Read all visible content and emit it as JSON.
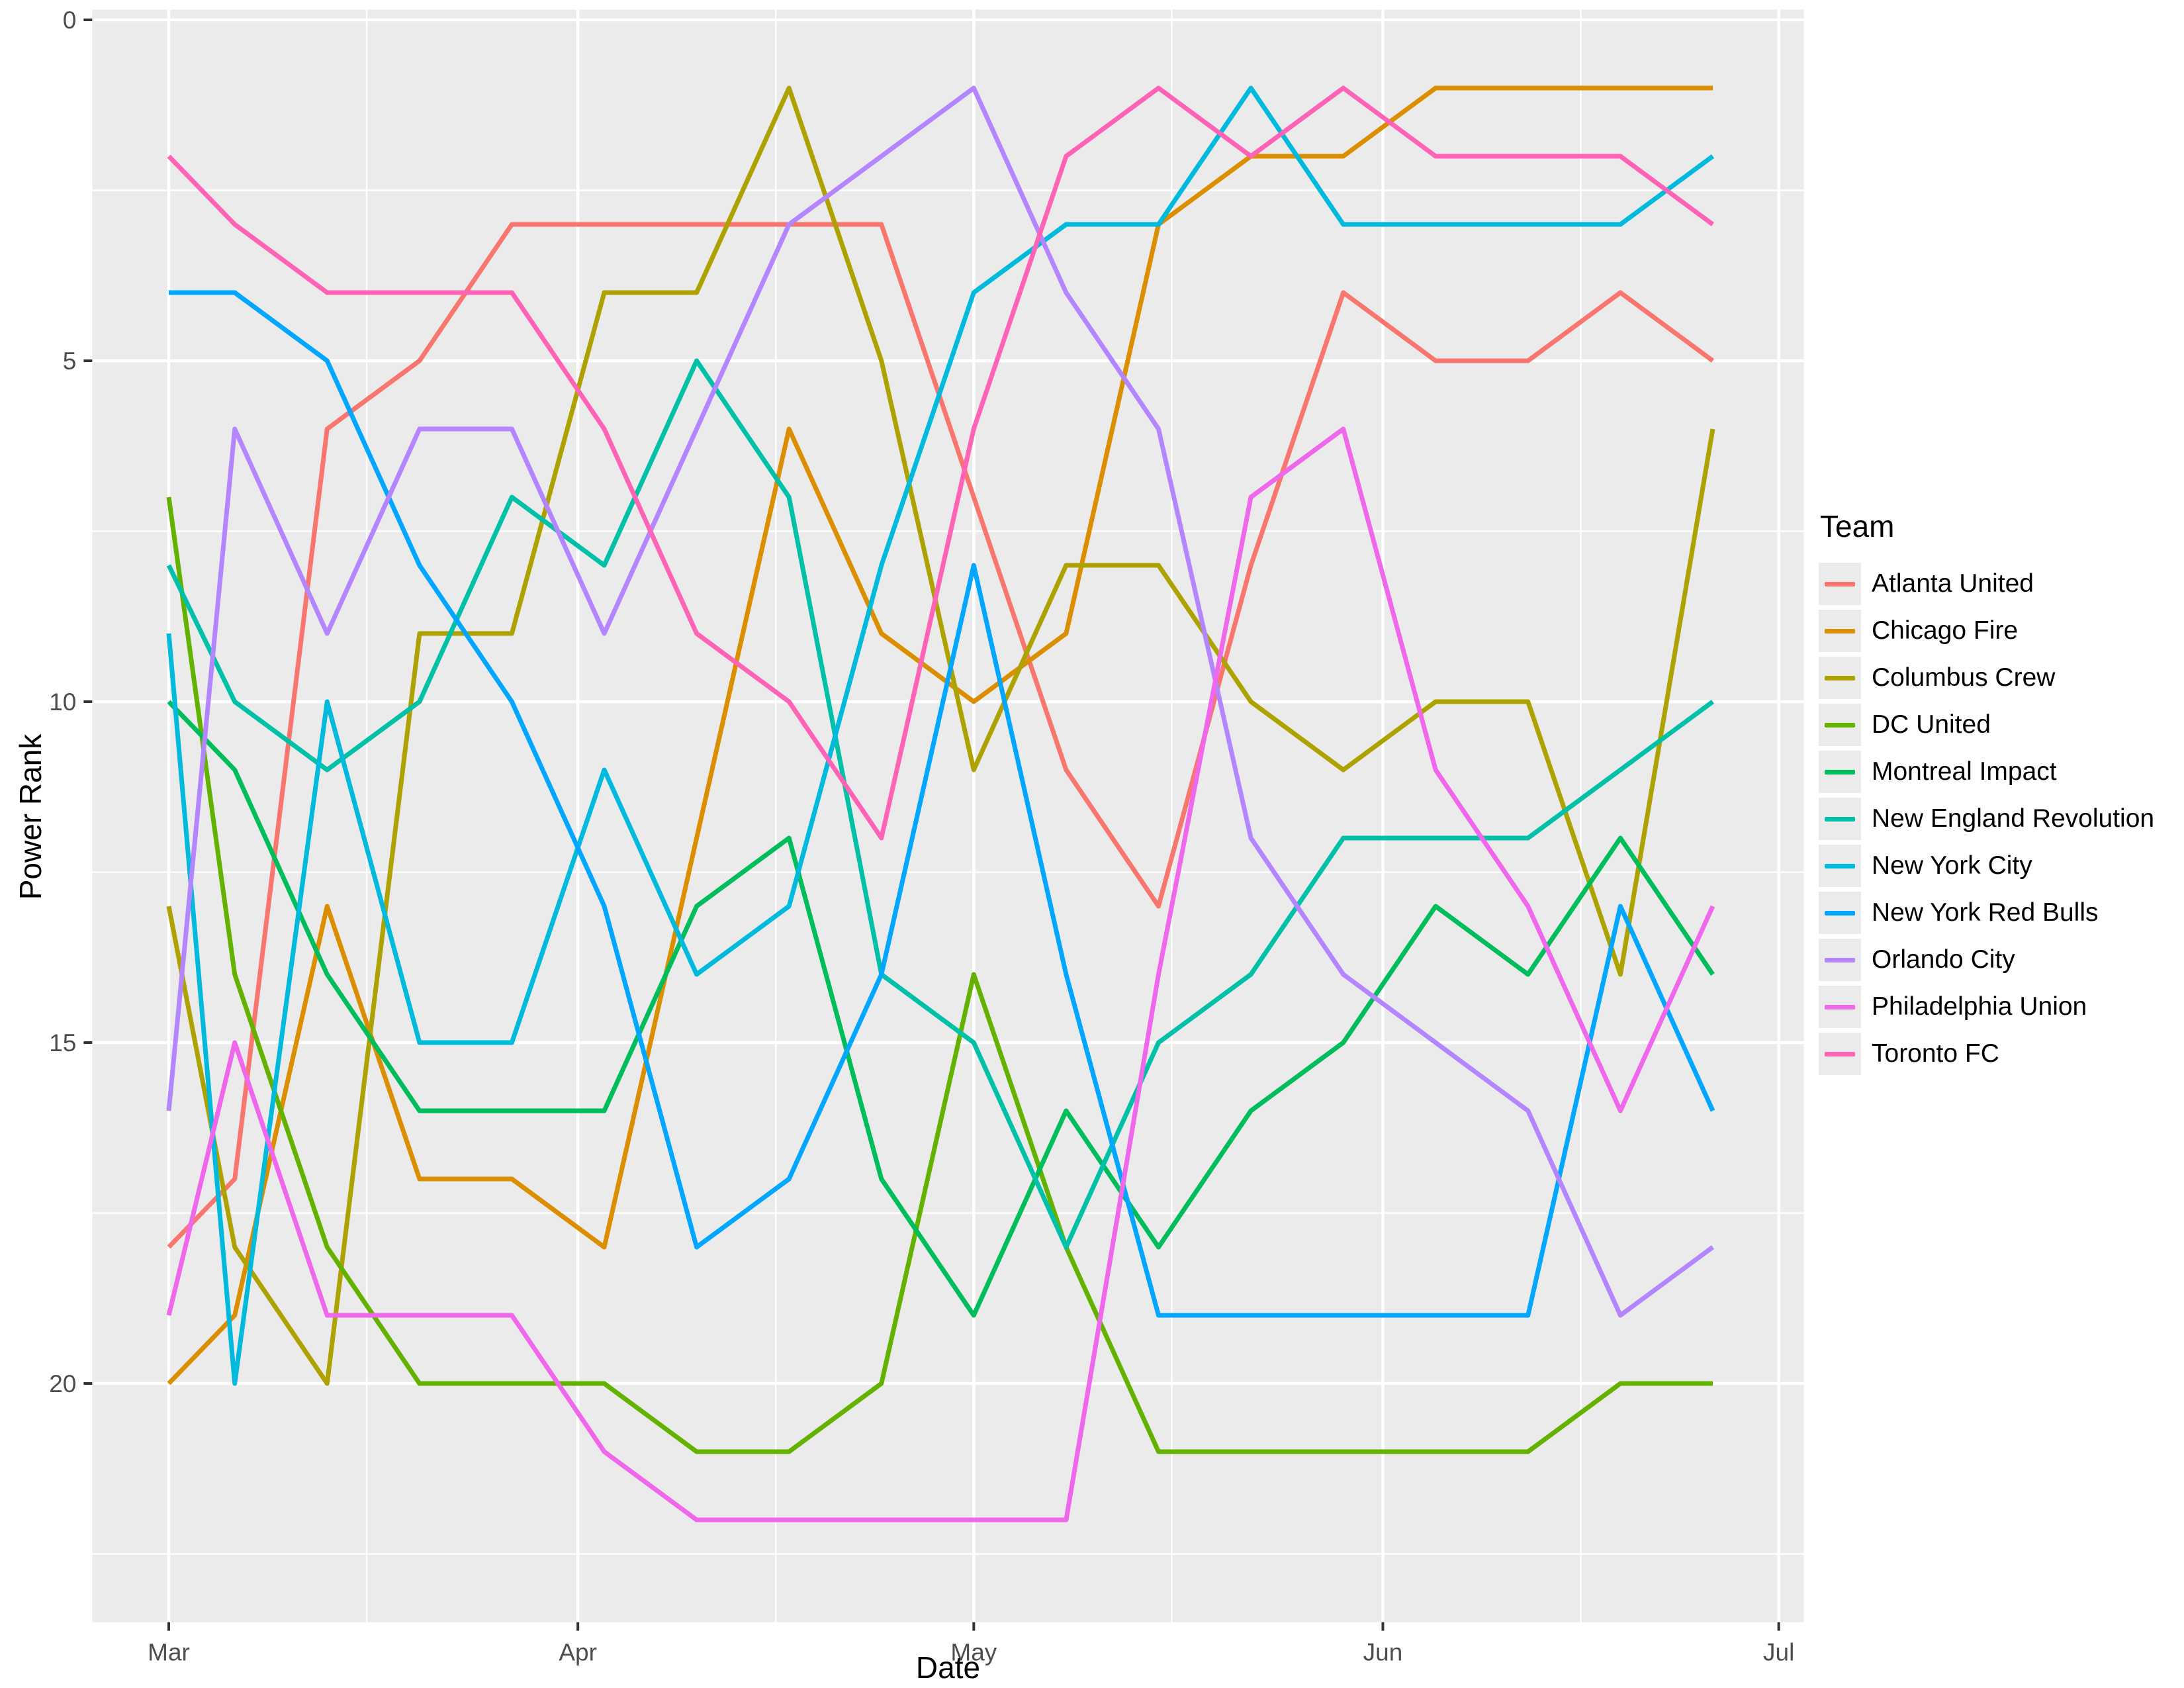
{
  "chart_data": {
    "type": "line",
    "title": "",
    "xlabel": "Date",
    "ylabel": "Power Rank",
    "legend_title": "Team",
    "legend_position": "right",
    "grid": true,
    "y_axis": {
      "tick_labels": [
        "0",
        "5",
        "10",
        "15",
        "20"
      ],
      "tick_values": [
        0,
        5,
        10,
        15,
        20
      ],
      "minor_values": [
        2.5,
        7.5,
        12.5,
        17.5,
        22.5
      ],
      "inverted": true,
      "range": [
        -0.15,
        23.5
      ]
    },
    "x_axis": {
      "tick_labels": [
        "Mar",
        "Apr",
        "May",
        "Jun",
        "Jul"
      ],
      "tick_days": [
        0,
        31,
        61,
        92,
        122
      ],
      "minor_days": [
        15,
        46,
        76,
        107
      ],
      "range_days": [
        -5.8,
        123.9
      ]
    },
    "week_labels": [
      "Mar 1",
      "Mar 6",
      "Mar 13",
      "Mar 20",
      "Mar 27",
      "Apr 3",
      "Apr 10",
      "Apr 17",
      "Apr 24",
      "May 1",
      "May 8",
      "May 15",
      "May 22",
      "May 29",
      "Jun 5",
      "Jun 12",
      "Jun 19",
      "Jun 26"
    ],
    "week_days": [
      0,
      5,
      12,
      19,
      26,
      33,
      40,
      47,
      54,
      61,
      68,
      75,
      82,
      89,
      96,
      103,
      110,
      117
    ],
    "series": [
      {
        "name": "Atlanta United",
        "color": "#F8766D",
        "values": [
          18,
          17,
          6,
          5,
          3,
          3,
          3,
          3,
          3,
          7,
          11,
          13,
          8,
          4,
          5,
          5,
          4,
          5
        ]
      },
      {
        "name": "Chicago Fire",
        "color": "#DB8E00",
        "values": [
          20,
          19,
          13,
          17,
          17,
          18,
          12,
          6,
          9,
          10,
          9,
          3,
          2,
          2,
          1,
          1,
          1,
          1
        ]
      },
      {
        "name": "Columbus Crew",
        "color": "#AEA200",
        "values": [
          13,
          18,
          20,
          9,
          9,
          4,
          4,
          1,
          5,
          11,
          8,
          8,
          10,
          11,
          10,
          10,
          14,
          6
        ]
      },
      {
        "name": "DC United",
        "color": "#64B200",
        "values": [
          7,
          14,
          18,
          20,
          20,
          20,
          21,
          21,
          20,
          14,
          18,
          21,
          21,
          21,
          21,
          21,
          20,
          20
        ]
      },
      {
        "name": "Montreal Impact",
        "color": "#00BD5C",
        "values": [
          10,
          11,
          14,
          16,
          16,
          16,
          13,
          12,
          17,
          19,
          16,
          18,
          16,
          15,
          13,
          14,
          12,
          14
        ]
      },
      {
        "name": "New England Revolution",
        "color": "#00C1A7",
        "values": [
          8,
          10,
          11,
          10,
          7,
          8,
          5,
          7,
          14,
          15,
          18,
          15,
          14,
          12,
          12,
          12,
          11,
          10
        ]
      },
      {
        "name": "New York City",
        "color": "#00BADE",
        "values": [
          9,
          20,
          10,
          15,
          15,
          11,
          14,
          13,
          8,
          4,
          3,
          3,
          1,
          3,
          3,
          3,
          3,
          2
        ]
      },
      {
        "name": "New York Red Bulls",
        "color": "#00A6FF",
        "values": [
          4,
          4,
          5,
          8,
          10,
          13,
          18,
          17,
          14,
          8,
          14,
          19,
          19,
          19,
          19,
          19,
          13,
          16
        ]
      },
      {
        "name": "Orlando City",
        "color": "#B385FF",
        "values": [
          16,
          6,
          9,
          6,
          6,
          9,
          6,
          3,
          2,
          1,
          4,
          6,
          12,
          14,
          15,
          16,
          19,
          18
        ]
      },
      {
        "name": "Philadelphia Union",
        "color": "#EF67EB",
        "values": [
          19,
          15,
          19,
          19,
          19,
          21,
          22,
          22,
          22,
          22,
          22,
          14,
          7,
          6,
          11,
          13,
          16,
          13
        ]
      },
      {
        "name": "Toronto FC",
        "color": "#FF63B6",
        "values": [
          2,
          3,
          4,
          4,
          4,
          6,
          9,
          10,
          12,
          6,
          2,
          1,
          2,
          1,
          2,
          2,
          2,
          3
        ]
      }
    ],
    "theme": {
      "panel_bg": "#EBEBEB",
      "grid_color": "#FFFFFF",
      "tick_label_color": "#4D4D4D",
      "tick_mark_color": "#333333",
      "axis_title_color": "#000000",
      "line_width": 7
    }
  }
}
